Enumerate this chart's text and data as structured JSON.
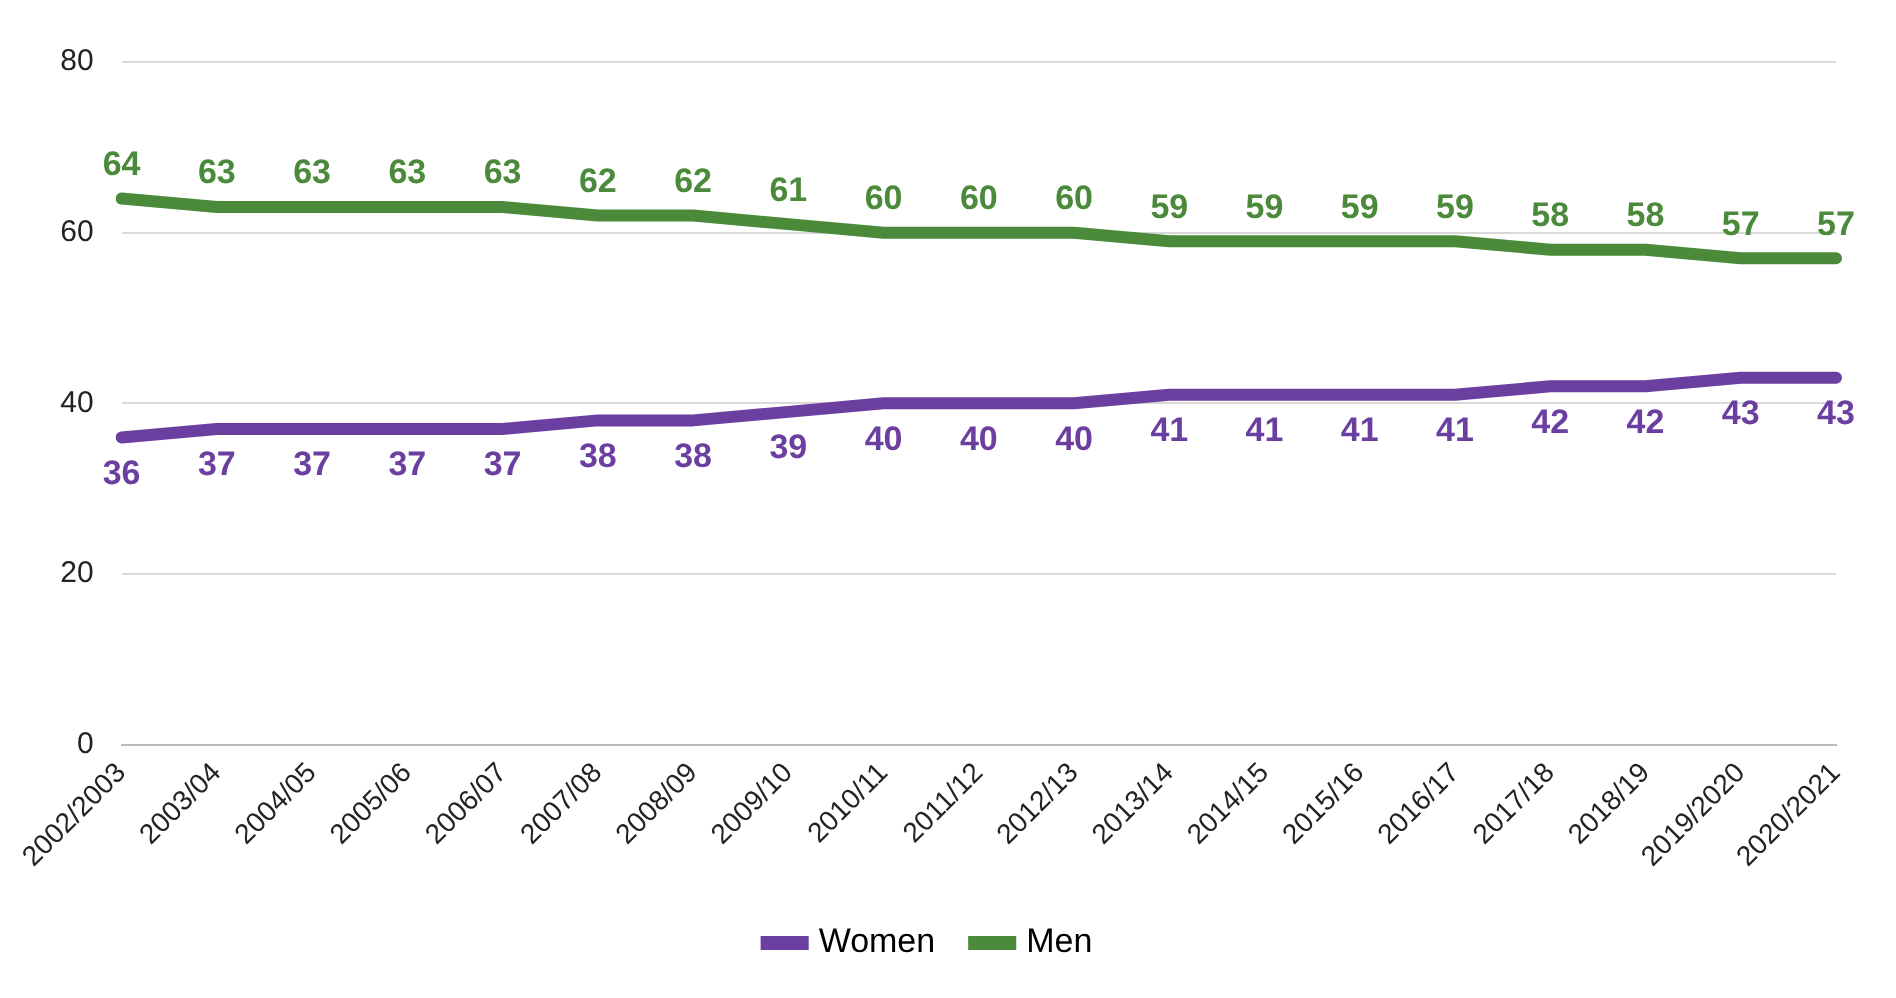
{
  "chart_data": {
    "type": "line",
    "categories": [
      "2002/2003",
      "2003/04",
      "2004/05",
      "2005/06",
      "2006/07",
      "2007/08",
      "2008/09",
      "2009/10",
      "2010/11",
      "2011/12",
      "2012/13",
      "2013/14",
      "2014/15",
      "2015/16",
      "2016/17",
      "2017/18",
      "2018/19",
      "2019/2020",
      "2020/2021"
    ],
    "series": [
      {
        "name": "Women",
        "color": "#6b3fa0",
        "values": [
          36,
          37,
          37,
          37,
          37,
          38,
          38,
          39,
          40,
          40,
          40,
          41,
          41,
          41,
          41,
          42,
          42,
          43,
          43
        ]
      },
      {
        "name": "Men",
        "color": "#4a8a3a",
        "values": [
          64,
          63,
          63,
          63,
          63,
          62,
          62,
          61,
          60,
          60,
          60,
          59,
          59,
          59,
          59,
          58,
          58,
          57,
          57
        ]
      }
    ],
    "ylim": [
      0,
      80
    ],
    "yticks": [
      0,
      20,
      40,
      60,
      80
    ],
    "grid": "y",
    "legend": "bottom",
    "data_labels": true,
    "marker": "none"
  }
}
